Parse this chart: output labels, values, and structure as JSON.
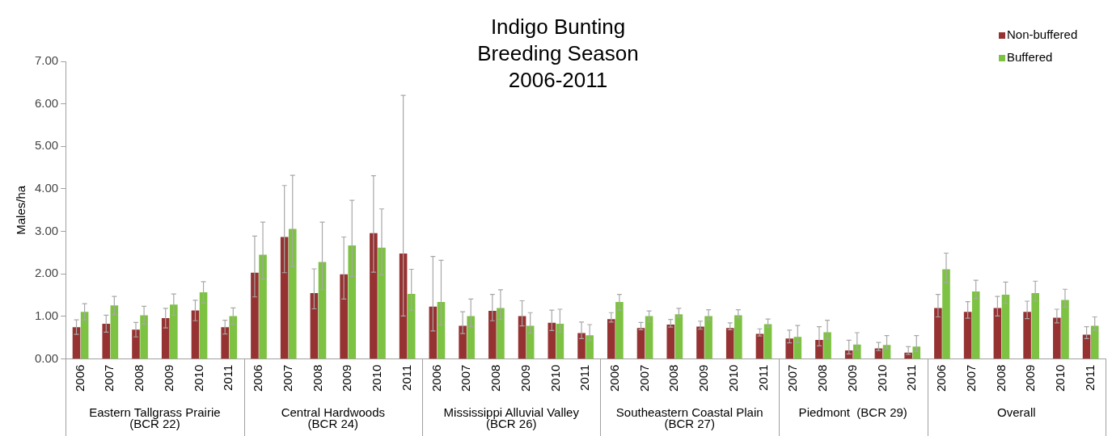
{
  "chart_data": {
    "type": "bar",
    "title": "Indigo Bunting\nBreeding Season\n2006-2011",
    "ylabel": "Males/ha",
    "categories": [
      "2006",
      "2007",
      "2008",
      "2009",
      "2010",
      "2011",
      "2006",
      "2007",
      "2008",
      "2009",
      "2010",
      "2011",
      "2006",
      "2007",
      "2008",
      "2009",
      "2010",
      "2011",
      "2006",
      "2007",
      "2008",
      "2009",
      "2010",
      "2011",
      "2007",
      "2008",
      "2009",
      "2010",
      "2011",
      "2006",
      "2007",
      "2008",
      "2009",
      "2010",
      "2011"
    ],
    "annotations": [
      "Eastern Tallgrass Prairie\n(BCR 22)",
      "Central Hardwoods\n(BCR 24)",
      "Mississippi Alluvial Valley\n(BCR 26)",
      "Southeastern Coastal Plain\n(BCR 27)",
      "Piedmont  (BCR 29)",
      "Overall"
    ],
    "series": [
      {
        "name": "Non-buffered",
        "color": "#963232",
        "values": [
          0.75,
          0.83,
          0.69,
          0.96,
          1.14,
          0.75,
          2.03,
          2.87,
          1.55,
          1.99,
          2.96,
          2.48,
          1.23,
          0.78,
          1.13,
          1.01,
          0.85,
          0.61,
          0.94,
          0.73,
          0.81,
          0.76,
          0.73,
          0.59,
          0.48,
          0.45,
          0.2,
          0.25,
          0.15,
          1.2,
          1.11,
          1.2,
          1.11,
          0.97,
          0.57
        ],
        "errors": [
          0.17,
          0.2,
          0.17,
          0.23,
          0.24,
          0.16,
          [
            1.46,
            2.89
          ],
          [
            2.03,
            4.08
          ],
          [
            1.18,
            2.12
          ],
          [
            1.41,
            2.87
          ],
          [
            2.04,
            4.31
          ],
          [
            1.01,
            6.2
          ],
          [
            0.66,
            2.41
          ],
          [
            0.6,
            1.11
          ],
          [
            0.9,
            1.52
          ],
          [
            0.78,
            1.37
          ],
          [
            0.67,
            1.15
          ],
          [
            0.48,
            0.87
          ],
          [
            0.87,
            1.09
          ],
          [
            0.69,
            0.86
          ],
          [
            0.75,
            0.93
          ],
          [
            0.7,
            0.89
          ],
          [
            0.69,
            0.85
          ],
          [
            0.54,
            0.71
          ],
          [
            0.38,
            0.68
          ],
          [
            0.31,
            0.76
          ],
          [
            0.12,
            0.44
          ],
          [
            0.2,
            0.39
          ],
          [
            0.11,
            0.29
          ],
          [
            0.99,
            1.52
          ],
          [
            0.96,
            1.35
          ],
          [
            1.01,
            1.47
          ],
          [
            0.95,
            1.36
          ],
          [
            0.85,
            1.17
          ],
          [
            0.48,
            0.76
          ]
        ]
      },
      {
        "name": "Buffered",
        "color": "#7dc242",
        "values": [
          1.11,
          1.26,
          1.03,
          1.28,
          1.57,
          1.01,
          2.45,
          3.06,
          2.28,
          2.67,
          2.62,
          1.53,
          1.34,
          1.01,
          1.2,
          0.78,
          0.83,
          0.56,
          1.34,
          1.01,
          1.05,
          1.01,
          1.03,
          0.82,
          0.52,
          0.63,
          0.34,
          0.33,
          0.29,
          2.11,
          1.59,
          1.51,
          1.55,
          1.39,
          0.78
        ],
        "errors": [
          0.19,
          0.21,
          0.21,
          0.25,
          0.25,
          0.19,
          [
            1.88,
            3.22
          ],
          [
            2.18,
            4.32
          ],
          [
            1.64,
            3.22
          ],
          [
            1.94,
            3.73
          ],
          [
            1.98,
            3.53
          ],
          [
            1.15,
            2.11
          ],
          [
            0.8,
            2.32
          ],
          [
            0.76,
            1.41
          ],
          [
            0.93,
            1.63
          ],
          [
            0.61,
            1.09
          ],
          [
            0.64,
            1.17
          ],
          [
            0.45,
            0.81
          ],
          [
            1.15,
            1.52
          ],
          [
            0.88,
            1.13
          ],
          [
            0.98,
            1.19
          ],
          [
            0.92,
            1.16
          ],
          [
            0.97,
            1.16
          ],
          [
            0.75,
            0.94
          ],
          [
            0.39,
            0.79
          ],
          [
            0.47,
            0.91
          ],
          [
            0.22,
            0.62
          ],
          [
            0.24,
            0.55
          ],
          [
            0.18,
            0.55
          ],
          [
            1.8,
            2.49
          ],
          [
            1.42,
            1.85
          ],
          [
            1.31,
            1.81
          ],
          [
            1.36,
            1.83
          ],
          [
            1.22,
            1.64
          ],
          [
            0.68,
            0.99
          ]
        ]
      }
    ],
    "ylim": [
      0,
      7
    ],
    "yticks": [
      {
        "value": 0,
        "label": "0.00"
      },
      {
        "value": 1,
        "label": "1.00"
      },
      {
        "value": 2,
        "label": "2.00"
      },
      {
        "value": 3,
        "label": "3.00"
      },
      {
        "value": 4,
        "label": "4.00"
      },
      {
        "value": 5,
        "label": "5.00"
      },
      {
        "value": 6,
        "label": "6.00"
      },
      {
        "value": 7,
        "label": "7.00"
      }
    ],
    "grid": false,
    "legend": "top right"
  }
}
